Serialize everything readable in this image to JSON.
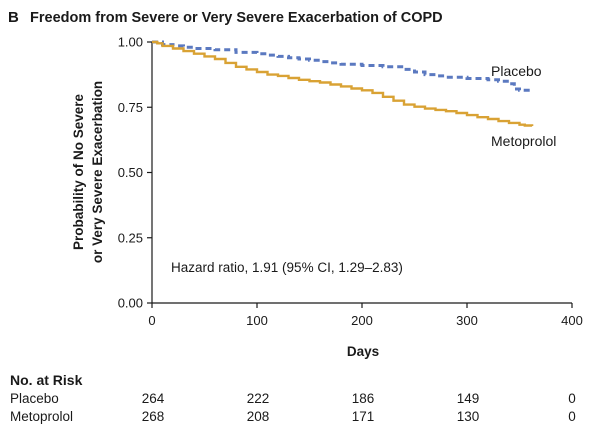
{
  "panel_letter": "B",
  "chart_data": {
    "type": "line",
    "title": "Freedom from Severe or Very Severe Exacerbation of COPD",
    "xlabel": "Days",
    "ylabel_lines": [
      "Probability of No Severe",
      "or Very Severe Exacerbation"
    ],
    "xlim": [
      0,
      400
    ],
    "ylim": [
      0,
      1
    ],
    "x_ticks": [
      0,
      100,
      200,
      300,
      400
    ],
    "x_tick_labels": [
      "0",
      "100",
      "200",
      "300",
      "400"
    ],
    "y_ticks": [
      0,
      0.25,
      0.5,
      0.75,
      1.0
    ],
    "y_tick_labels": [
      "0.00",
      "0.25",
      "0.50",
      "0.75",
      "1.00"
    ],
    "grid": false,
    "annotation": "Hazard ratio, 1.91 (95% CI, 1.29–2.83)",
    "series": [
      {
        "name": "Placebo",
        "color": "#5b79c0",
        "dash": "dashed",
        "x": [
          0,
          10,
          20,
          30,
          40,
          60,
          80,
          100,
          110,
          120,
          130,
          140,
          150,
          160,
          170,
          180,
          200,
          220,
          240,
          250,
          260,
          270,
          280,
          300,
          320,
          330,
          340,
          345,
          350,
          362
        ],
        "y": [
          1.0,
          0.99,
          0.985,
          0.98,
          0.975,
          0.97,
          0.96,
          0.955,
          0.95,
          0.945,
          0.94,
          0.935,
          0.93,
          0.925,
          0.92,
          0.915,
          0.91,
          0.905,
          0.895,
          0.885,
          0.875,
          0.87,
          0.865,
          0.86,
          0.855,
          0.85,
          0.84,
          0.82,
          0.815,
          0.812
        ]
      },
      {
        "name": "Metoprolol",
        "color": "#d9a234",
        "dash": "solid",
        "x": [
          0,
          5,
          10,
          20,
          30,
          40,
          50,
          60,
          70,
          80,
          90,
          100,
          110,
          120,
          130,
          140,
          150,
          160,
          170,
          180,
          190,
          200,
          210,
          220,
          230,
          240,
          250,
          260,
          270,
          280,
          290,
          300,
          310,
          320,
          330,
          340,
          350,
          355,
          362
        ],
        "y": [
          1.0,
          0.995,
          0.985,
          0.975,
          0.965,
          0.955,
          0.945,
          0.935,
          0.92,
          0.905,
          0.895,
          0.885,
          0.875,
          0.87,
          0.862,
          0.855,
          0.85,
          0.845,
          0.837,
          0.83,
          0.822,
          0.815,
          0.805,
          0.79,
          0.775,
          0.76,
          0.752,
          0.745,
          0.74,
          0.735,
          0.728,
          0.72,
          0.712,
          0.705,
          0.697,
          0.69,
          0.683,
          0.68,
          0.678
        ]
      }
    ]
  },
  "risk_table": {
    "title": "No. at Risk",
    "rows": [
      {
        "label": "Placebo",
        "values": [
          "264",
          "222",
          "186",
          "149",
          "0"
        ]
      },
      {
        "label": "Metoprolol",
        "values": [
          "268",
          "208",
          "171",
          "130",
          "0"
        ]
      }
    ]
  }
}
